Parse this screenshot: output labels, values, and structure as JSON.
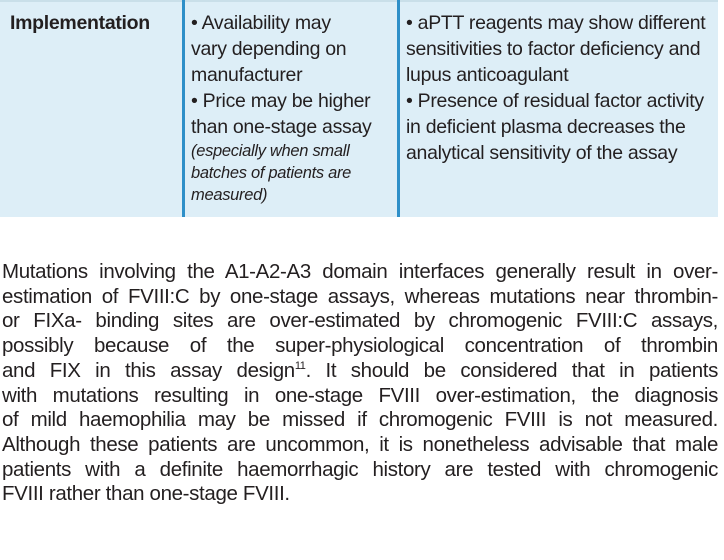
{
  "table": {
    "row_label": "Implementation",
    "col2_lines": [
      "• Availability may",
      "vary depending on",
      "manufacturer",
      "• Price may be higher",
      "than one-stage assay"
    ],
    "col2_note_lines": [
      "(especially when small",
      "batches of patients are",
      "measured)"
    ],
    "col3_lines": [
      "• aPTT reagents may show different",
      "sensitivities to factor deficiency and",
      "lupus anticoagulant",
      "• Presence of residual factor activity",
      "in deficient plasma decreases the",
      "analytical sensitivity of the assay"
    ]
  },
  "paragraph": {
    "lines": [
      "Mutations involving the A1-A2-A3 domain interfaces generally result in over-",
      "estimation of FVIII:C by one-stage assays, whereas mutations near thrombin-",
      "or FIXa- binding sites are over-estimated by chromogenic FVIII:C assays,",
      "possibly because of the super-physiological concentration of thrombin"
    ],
    "line5_before_ref": "and FIX in this assay design",
    "reference": "11",
    "line5_after_ref": ". It should be considered that in patients",
    "lines_rest": [
      "with mutations resulting in one-stage FVIII over-estimation, the diagnosis",
      "of mild haemophilia may be missed if chromogenic FVIII is not measured.",
      "Although these patients are uncommon, it is nonetheless advisable that male",
      "patients with a definite haemorrhagic history are tested with chromogenic",
      "FVIII rather than one-stage FVIII."
    ]
  },
  "colors": {
    "table_background": "#ddeef7",
    "column_divider": "#2e8fc8",
    "text": "#231f20"
  }
}
